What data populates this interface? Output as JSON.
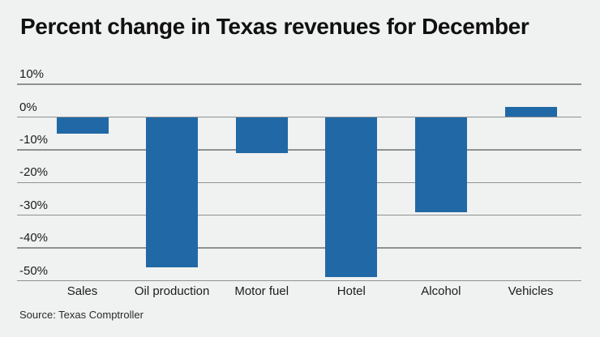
{
  "title": "Percent change in Texas revenues for December",
  "source": "Source: Texas Comptroller",
  "colors": {
    "background": "#f0f1f1",
    "bar": "#2069a6",
    "gridline": "#8f9292",
    "title_text": "#111111",
    "label_text": "#1c1c1c",
    "source_text": "#2a2a2a"
  },
  "chart_data": {
    "type": "bar",
    "title": "Percent change in Texas revenues for December",
    "categories": [
      "Sales",
      "Oil production",
      "Motor fuel",
      "Hotel",
      "Alcohol",
      "Vehicles"
    ],
    "values": [
      -5,
      -46,
      -11,
      -49,
      -29,
      3
    ],
    "unit": "%",
    "xlabel": "",
    "ylabel": "",
    "ylim": [
      -50,
      10
    ],
    "yticks": [
      10,
      0,
      -10,
      -20,
      -30,
      -40,
      -50
    ],
    "ytick_labels": [
      "10%",
      "0%",
      "-10%",
      "-20%",
      "-30%",
      "-40%",
      "-50%"
    ],
    "grid": true,
    "legend": false,
    "source": "Source: Texas Comptroller"
  }
}
